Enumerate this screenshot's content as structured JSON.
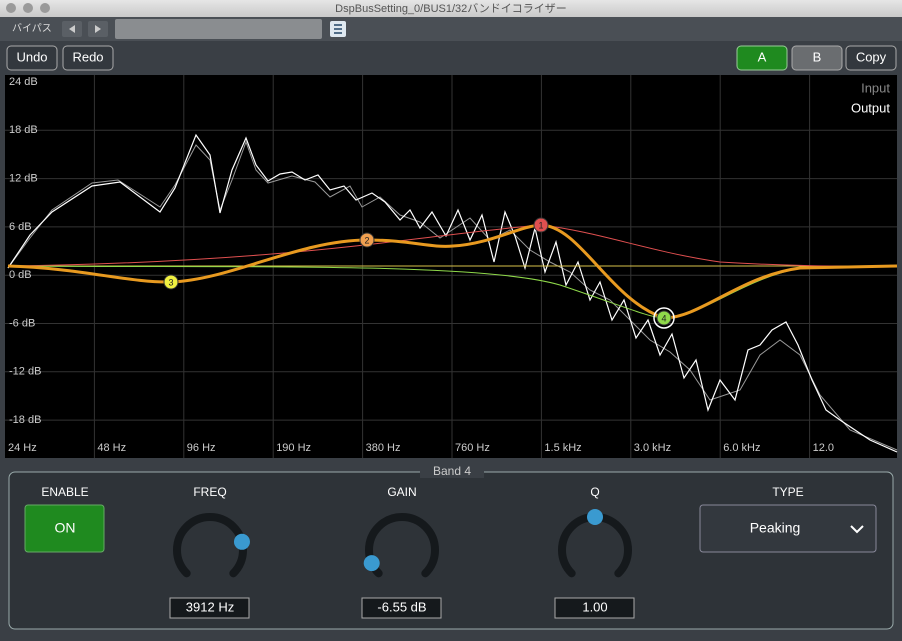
{
  "window": {
    "title": "DspBusSetting_0/BUS1/32バンドイコライザー"
  },
  "toolbar": {
    "bypass": "バイパス"
  },
  "buttons": {
    "undo": "Undo",
    "redo": "Redo",
    "a": "A",
    "b": "B",
    "copy": "Copy"
  },
  "graph": {
    "y_labels": [
      "24 dB",
      "18 dB",
      "12 dB",
      "6 dB",
      "0 dB",
      "-6 dB",
      "-12 dB",
      "-18 dB"
    ],
    "x_labels": [
      "24 Hz",
      "48 Hz",
      "96 Hz",
      "190 Hz",
      "380 Hz",
      "760 Hz",
      "1.5 kHz",
      "3.0 kHz",
      "6.0 kHz",
      "12.0"
    ],
    "legend": [
      "Input",
      "Output"
    ],
    "bands": [
      "1",
      "2",
      "3",
      "4"
    ]
  },
  "panel": {
    "title": "Band 4",
    "enable": {
      "label": "ENABLE",
      "value": "ON"
    },
    "freq": {
      "label": "FREQ",
      "value": "3912 Hz"
    },
    "gain": {
      "label": "GAIN",
      "value": "-6.55 dB"
    },
    "q": {
      "label": "Q",
      "value": "1.00"
    },
    "type": {
      "label": "TYPE",
      "value": "Peaking"
    }
  }
}
